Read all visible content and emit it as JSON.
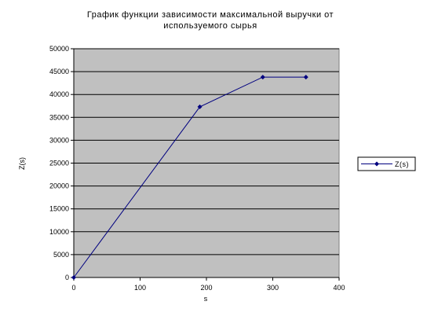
{
  "chart_data": {
    "type": "line",
    "title_lines": [
      "График функции зависимости максимальной выручки от",
      "используемого сырья"
    ],
    "xlabel": "s",
    "ylabel": "Z(s)",
    "xlim": [
      0,
      400
    ],
    "ylim": [
      0,
      50000
    ],
    "x_ticks": [
      "0",
      "100",
      "200",
      "300",
      "400"
    ],
    "y_ticks": [
      "0",
      "5000",
      "10000",
      "15000",
      "20000",
      "25000",
      "30000",
      "35000",
      "40000",
      "45000",
      "50000"
    ],
    "grid": "horizontal",
    "legend_position": "right",
    "series": [
      {
        "name": "Z(s)",
        "color": "#00007f",
        "x": [
          0,
          190,
          285,
          350
        ],
        "y": [
          0,
          37300,
          43800,
          43800
        ]
      }
    ],
    "plot_background": "#c0c0c0"
  }
}
